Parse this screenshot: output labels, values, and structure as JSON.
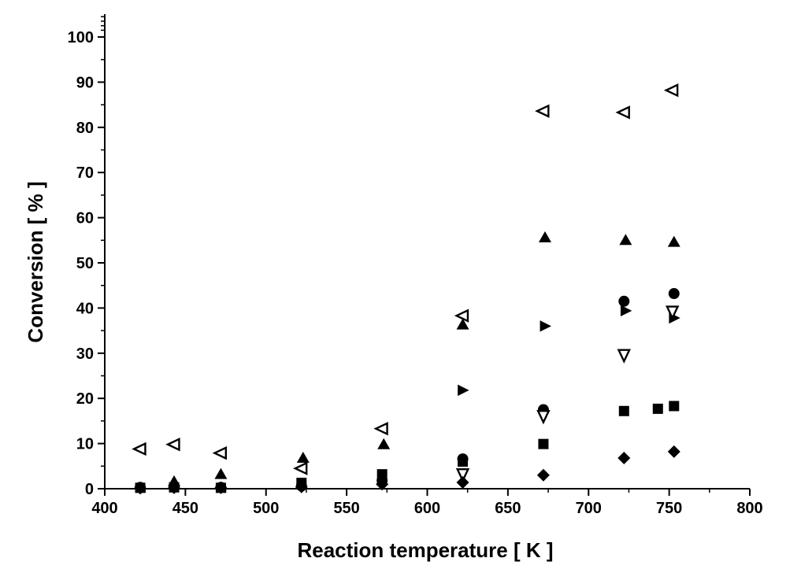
{
  "chart_data": {
    "type": "scatter",
    "title": "",
    "xlabel": "Reaction temperature [ K ]",
    "ylabel": "Conversion  [ % ]",
    "xlim": [
      400,
      800
    ],
    "ylim": [
      0,
      105
    ],
    "x_ticks": [
      400,
      450,
      500,
      550,
      600,
      650,
      700,
      750,
      800
    ],
    "y_ticks": [
      0,
      10,
      20,
      30,
      40,
      50,
      60,
      70,
      80,
      90,
      100
    ],
    "grid": false,
    "legend": "none",
    "series": [
      {
        "marker": "triangle-left-open",
        "points": [
          [
            422,
            8.8
          ],
          [
            443,
            9.8
          ],
          [
            472,
            7.9
          ],
          [
            522,
            4.5
          ],
          [
            572,
            13.3
          ],
          [
            622,
            38.3
          ],
          [
            672,
            83.6
          ],
          [
            722,
            83.3
          ],
          [
            752,
            88.2
          ]
        ]
      },
      {
        "marker": "triangle-up-filled",
        "points": [
          [
            443,
            1.6
          ],
          [
            472,
            3.2
          ],
          [
            523,
            6.8
          ],
          [
            573,
            9.8
          ],
          [
            622,
            36.3
          ],
          [
            673,
            55.6
          ],
          [
            723,
            55.0
          ],
          [
            753,
            54.6
          ]
        ]
      },
      {
        "marker": "triangle-right-filled",
        "points": [
          [
            622,
            21.8
          ],
          [
            673,
            36.0
          ],
          [
            723,
            39.4
          ],
          [
            753,
            37.8
          ]
        ]
      },
      {
        "marker": "circle-filled",
        "points": [
          [
            422,
            0.3
          ],
          [
            443,
            0.4
          ],
          [
            472,
            0.3
          ],
          [
            522,
            0.6
          ],
          [
            572,
            1.8
          ],
          [
            622,
            6.6
          ],
          [
            672,
            17.5
          ],
          [
            722,
            41.5
          ],
          [
            753,
            43.2
          ]
        ]
      },
      {
        "marker": "triangle-down-open",
        "points": [
          [
            622,
            3.2
          ],
          [
            672,
            16.1
          ],
          [
            722,
            29.6
          ],
          [
            752,
            39.2
          ]
        ]
      },
      {
        "marker": "square-filled",
        "points": [
          [
            422,
            0.2
          ],
          [
            443,
            0.3
          ],
          [
            472,
            0.2
          ],
          [
            522,
            1.3
          ],
          [
            572,
            3.2
          ],
          [
            622,
            6.0
          ],
          [
            672,
            9.9
          ],
          [
            722,
            17.2
          ],
          [
            743,
            17.7
          ],
          [
            753,
            18.3
          ]
        ]
      },
      {
        "marker": "diamond-filled",
        "points": [
          [
            422,
            0.1
          ],
          [
            443,
            0.2
          ],
          [
            472,
            0.2
          ],
          [
            522,
            0.4
          ],
          [
            572,
            1.0
          ],
          [
            622,
            1.4
          ],
          [
            672,
            3.0
          ],
          [
            722,
            6.8
          ],
          [
            753,
            8.2
          ]
        ]
      }
    ]
  }
}
